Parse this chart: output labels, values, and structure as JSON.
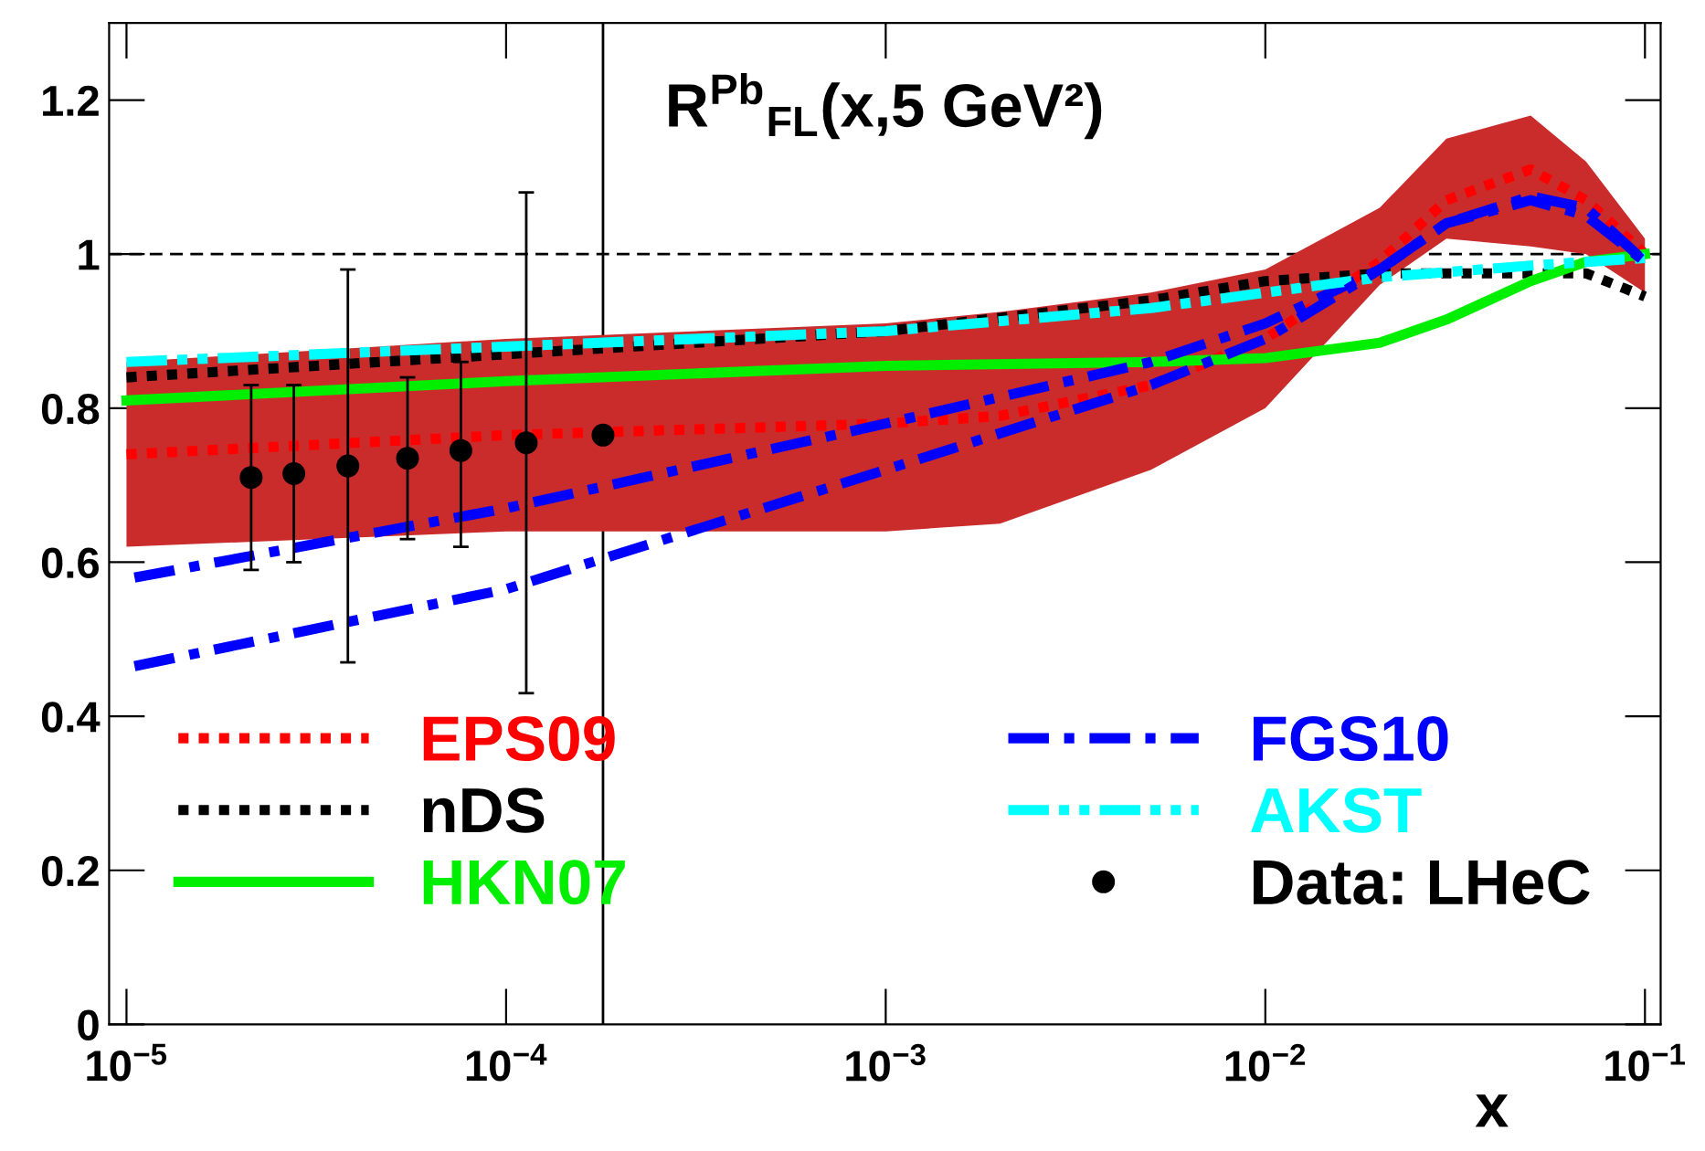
{
  "chart_data": {
    "type": "line",
    "title": "R$^{Pb}$$_{FL}$(x,5 GeV²)",
    "xlabel": "x",
    "log": "x",
    "xlim": [
      9e-06,
      0.11
    ],
    "ylim": [
      0,
      1.3
    ],
    "xticks": [
      {
        "value": 1e-05,
        "label": "10$^{−5}$"
      },
      {
        "value": 0.0001,
        "label": "10$^{−4}$"
      },
      {
        "value": 0.001,
        "label": "10$^{−3}$"
      },
      {
        "value": 0.01,
        "label": "10$^{−2}$"
      },
      {
        "value": 0.1,
        "label": "10$^{−1}$"
      }
    ],
    "yticks": [
      0,
      0.2,
      0.4,
      0.6,
      0.8,
      1,
      1.2
    ],
    "grid": false,
    "legend": "bottom",
    "ref_lines": [
      {
        "axis": "y",
        "value": 1,
        "line_style": "dashed",
        "color": "#000000"
      },
      {
        "axis": "x",
        "value": 0.00018,
        "line_style": "solid",
        "color": "#000000"
      }
    ],
    "series": [
      {
        "name": "EPS09",
        "color": "#ff0000",
        "line_style": "dotted",
        "x": [
          1e-05,
          0.0001,
          0.001,
          0.002,
          0.005,
          0.01,
          0.02,
          0.03,
          0.05,
          0.07,
          0.1
        ],
        "values": [
          0.74,
          0.765,
          0.78,
          0.79,
          0.83,
          0.89,
          0.99,
          1.07,
          1.11,
          1.07,
          1.0
        ],
        "lower": [
          0.62,
          0.64,
          0.64,
          0.65,
          0.72,
          0.8,
          0.96,
          1.02,
          1.01,
          1.0,
          0.95
        ],
        "upper": [
          0.86,
          0.89,
          0.91,
          0.925,
          0.95,
          0.98,
          1.06,
          1.15,
          1.18,
          1.12,
          1.02
        ]
      },
      {
        "name": "nDS",
        "color": "#000000",
        "line_style": "dotted",
        "x": [
          1e-05,
          0.0001,
          0.001,
          0.005,
          0.01,
          0.02,
          0.05,
          0.07,
          0.1
        ],
        "values": [
          0.84,
          0.87,
          0.9,
          0.94,
          0.965,
          0.975,
          0.975,
          0.975,
          0.945
        ]
      },
      {
        "name": "HKN07",
        "color": "#00ee00",
        "line_style": "solid",
        "x": [
          1e-05,
          0.0001,
          0.001,
          0.005,
          0.01,
          0.02,
          0.03,
          0.05,
          0.07,
          0.1
        ],
        "values": [
          0.81,
          0.835,
          0.855,
          0.86,
          0.865,
          0.885,
          0.915,
          0.965,
          0.99,
          1.0
        ]
      },
      {
        "name": "FGS10",
        "color": "#0000ff",
        "line_style": "dashdot",
        "x": [
          1.05e-05,
          0.0001,
          0.001,
          0.005,
          0.01,
          0.02,
          0.03,
          0.05,
          0.07,
          0.1
        ],
        "values": [
          0.58,
          0.67,
          0.78,
          0.86,
          0.91,
          0.98,
          1.04,
          1.075,
          1.06,
          0.99
        ]
      },
      {
        "name": "AKST",
        "color": "#00ffff",
        "line_style": "dashdotdot",
        "x": [
          1e-05,
          0.0001,
          0.001,
          0.005,
          0.01,
          0.02,
          0.05,
          0.1
        ],
        "values": [
          0.86,
          0.88,
          0.9,
          0.93,
          0.95,
          0.97,
          0.985,
          0.995
        ]
      },
      {
        "color": "#0000ff",
        "line_style": "dashdot",
        "x": [
          1.05e-05,
          0.0001,
          0.001,
          0.005,
          0.01,
          0.02,
          0.03,
          0.05,
          0.07,
          0.1
        ],
        "values": [
          0.465,
          0.565,
          0.72,
          0.83,
          0.89,
          0.98,
          1.04,
          1.07,
          1.05,
          0.99
        ]
      },
      {
        "name": "Data: LHeC",
        "type": "scatter",
        "color": "#000000",
        "marker": "circle",
        "x": [
          2.13e-05,
          2.76e-05,
          3.83e-05,
          5.5e-05,
          7.6e-05,
          0.000113,
          0.00018
        ],
        "values": [
          0.71,
          0.715,
          0.725,
          0.735,
          0.745,
          0.755,
          0.765
        ],
        "errors": [
          [
            0.59,
            0.83
          ],
          [
            0.6,
            0.83
          ],
          [
            0.47,
            0.98
          ],
          [
            0.63,
            0.84
          ],
          [
            0.62,
            0.86
          ],
          [
            0.43,
            1.08
          ],
          null
        ]
      }
    ]
  }
}
